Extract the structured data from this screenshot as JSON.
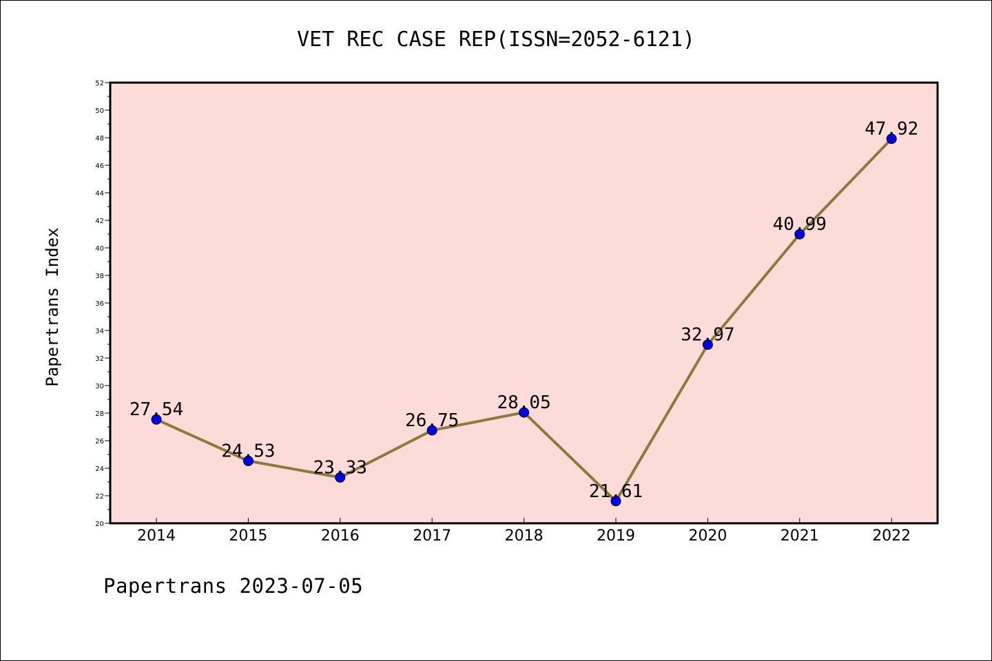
{
  "chart_data": {
    "type": "line",
    "title": "VET REC CASE REP(ISSN=2052-6121)",
    "xlabel": "",
    "ylabel": "Papertrans Index",
    "categories": [
      "2014",
      "2015",
      "2016",
      "2017",
      "2018",
      "2019",
      "2020",
      "2021",
      "2022"
    ],
    "series": [
      {
        "values": [
          27.54,
          24.53,
          23.33,
          26.75,
          28.05,
          21.61,
          32.97,
          40.99,
          47.92
        ],
        "labels": [
          "27.54",
          "24.53",
          "23.33",
          "26.75",
          "28.05",
          "21.61",
          "32.97",
          "40.99",
          "47.92"
        ]
      }
    ],
    "ylim": [
      20,
      52
    ],
    "yticks": [
      "20",
      "22",
      "24",
      "26",
      "28",
      "30",
      "32",
      "34",
      "36",
      "38",
      "40",
      "42",
      "44",
      "46",
      "48",
      "50",
      "52"
    ],
    "grid": false,
    "legend": "none",
    "colors": {
      "plot_background": "#fddbd8",
      "line": "#8b7b3a",
      "marker": "#0000ee",
      "axis": "#000000"
    }
  },
  "footer": "Papertrans 2023-07-05"
}
